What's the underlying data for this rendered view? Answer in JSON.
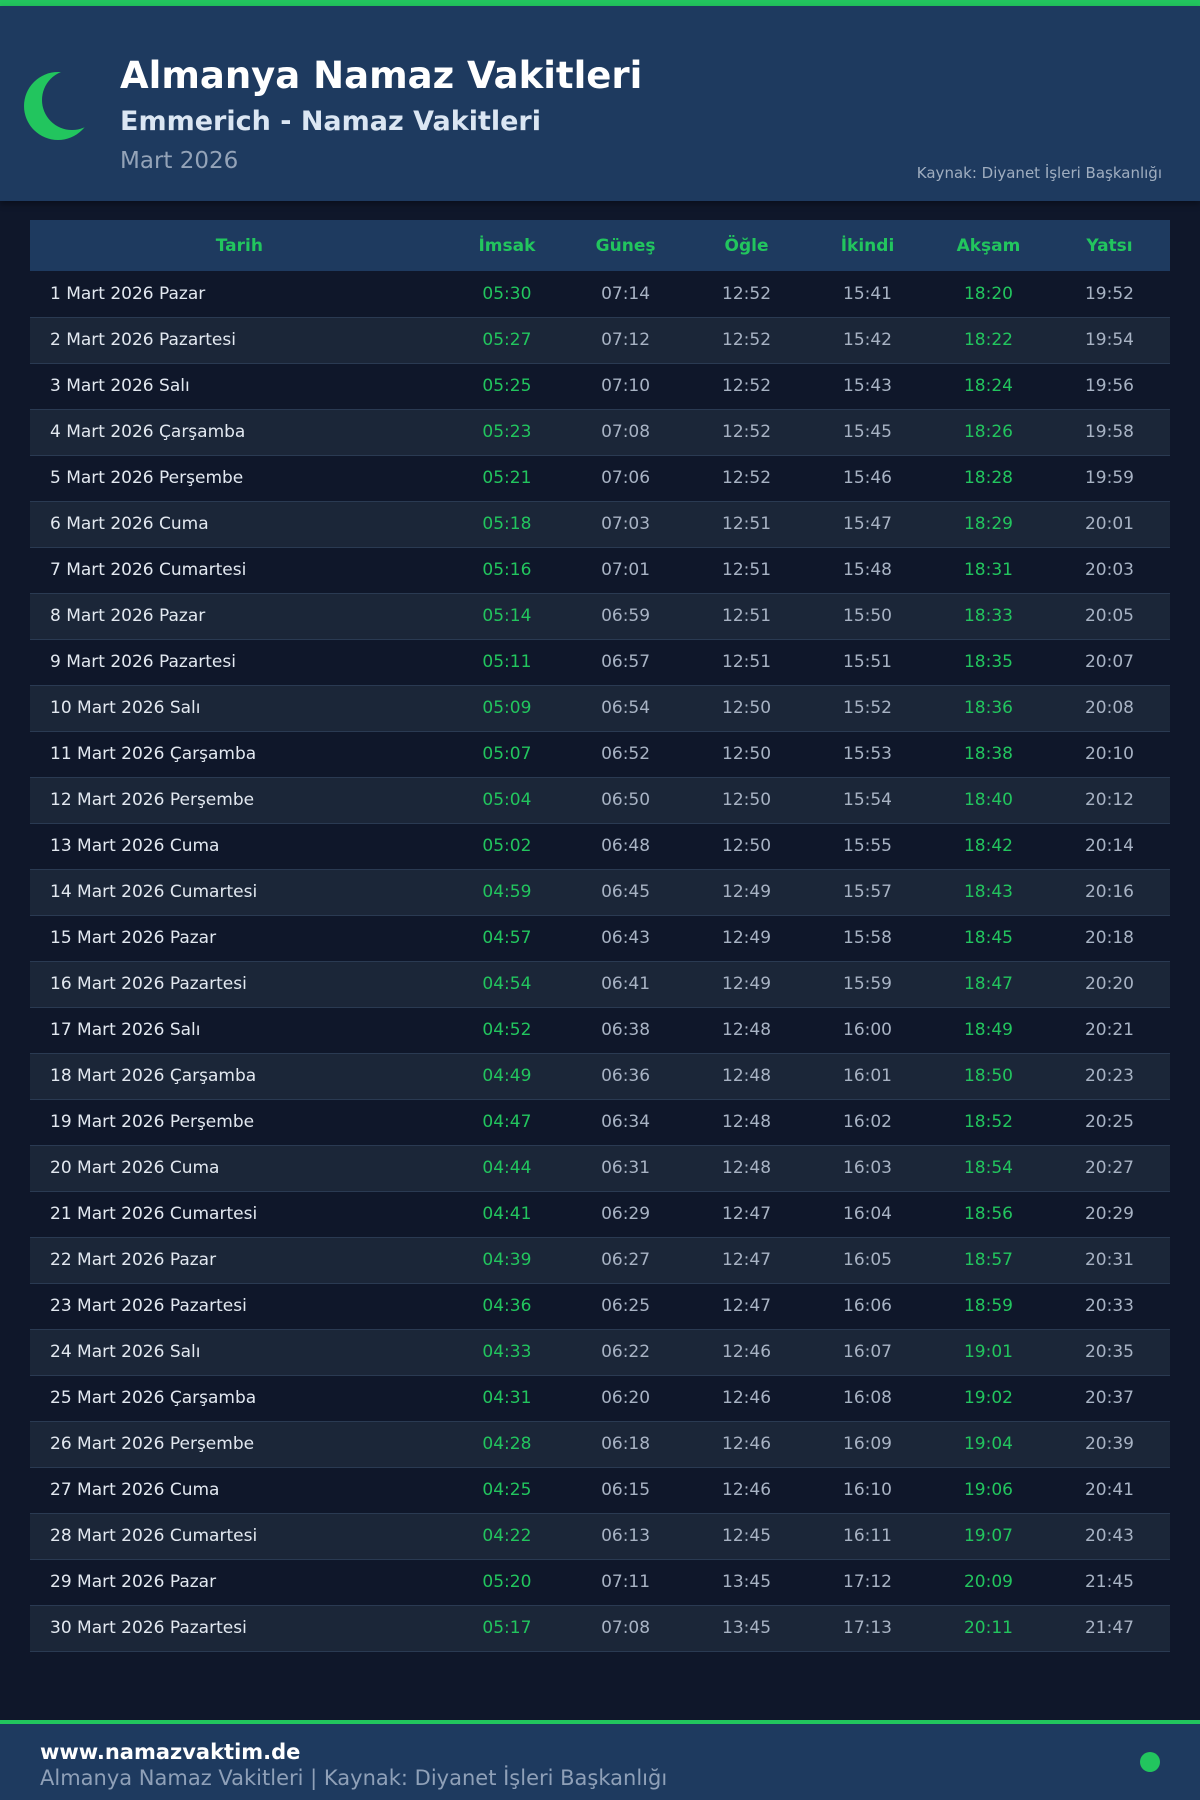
{
  "header": {
    "title": "Almanya Namaz Vakitleri",
    "subtitle": "Emmerich - Namaz Vakitleri",
    "month": "Mart 2026",
    "source": "Kaynak: Diyanet İşleri Başkanlığı",
    "icon": "crescent-moon-icon"
  },
  "colors": {
    "accent": "#22c55e",
    "header_bg": "#1e3a5f",
    "page_bg": "#0f172a"
  },
  "table": {
    "columns": [
      "Tarih",
      "İmsak",
      "Güneş",
      "Öğle",
      "İkindi",
      "Akşam",
      "Yatsı"
    ],
    "rows": [
      [
        "1 Mart 2026 Pazar",
        "05:30",
        "07:14",
        "12:52",
        "15:41",
        "18:20",
        "19:52"
      ],
      [
        "2 Mart 2026 Pazartesi",
        "05:27",
        "07:12",
        "12:52",
        "15:42",
        "18:22",
        "19:54"
      ],
      [
        "3 Mart 2026 Salı",
        "05:25",
        "07:10",
        "12:52",
        "15:43",
        "18:24",
        "19:56"
      ],
      [
        "4 Mart 2026 Çarşamba",
        "05:23",
        "07:08",
        "12:52",
        "15:45",
        "18:26",
        "19:58"
      ],
      [
        "5 Mart 2026 Perşembe",
        "05:21",
        "07:06",
        "12:52",
        "15:46",
        "18:28",
        "19:59"
      ],
      [
        "6 Mart 2026 Cuma",
        "05:18",
        "07:03",
        "12:51",
        "15:47",
        "18:29",
        "20:01"
      ],
      [
        "7 Mart 2026 Cumartesi",
        "05:16",
        "07:01",
        "12:51",
        "15:48",
        "18:31",
        "20:03"
      ],
      [
        "8 Mart 2026 Pazar",
        "05:14",
        "06:59",
        "12:51",
        "15:50",
        "18:33",
        "20:05"
      ],
      [
        "9 Mart 2026 Pazartesi",
        "05:11",
        "06:57",
        "12:51",
        "15:51",
        "18:35",
        "20:07"
      ],
      [
        "10 Mart 2026 Salı",
        "05:09",
        "06:54",
        "12:50",
        "15:52",
        "18:36",
        "20:08"
      ],
      [
        "11 Mart 2026 Çarşamba",
        "05:07",
        "06:52",
        "12:50",
        "15:53",
        "18:38",
        "20:10"
      ],
      [
        "12 Mart 2026 Perşembe",
        "05:04",
        "06:50",
        "12:50",
        "15:54",
        "18:40",
        "20:12"
      ],
      [
        "13 Mart 2026 Cuma",
        "05:02",
        "06:48",
        "12:50",
        "15:55",
        "18:42",
        "20:14"
      ],
      [
        "14 Mart 2026 Cumartesi",
        "04:59",
        "06:45",
        "12:49",
        "15:57",
        "18:43",
        "20:16"
      ],
      [
        "15 Mart 2026 Pazar",
        "04:57",
        "06:43",
        "12:49",
        "15:58",
        "18:45",
        "20:18"
      ],
      [
        "16 Mart 2026 Pazartesi",
        "04:54",
        "06:41",
        "12:49",
        "15:59",
        "18:47",
        "20:20"
      ],
      [
        "17 Mart 2026 Salı",
        "04:52",
        "06:38",
        "12:48",
        "16:00",
        "18:49",
        "20:21"
      ],
      [
        "18 Mart 2026 Çarşamba",
        "04:49",
        "06:36",
        "12:48",
        "16:01",
        "18:50",
        "20:23"
      ],
      [
        "19 Mart 2026 Perşembe",
        "04:47",
        "06:34",
        "12:48",
        "16:02",
        "18:52",
        "20:25"
      ],
      [
        "20 Mart 2026 Cuma",
        "04:44",
        "06:31",
        "12:48",
        "16:03",
        "18:54",
        "20:27"
      ],
      [
        "21 Mart 2026 Cumartesi",
        "04:41",
        "06:29",
        "12:47",
        "16:04",
        "18:56",
        "20:29"
      ],
      [
        "22 Mart 2026 Pazar",
        "04:39",
        "06:27",
        "12:47",
        "16:05",
        "18:57",
        "20:31"
      ],
      [
        "23 Mart 2026 Pazartesi",
        "04:36",
        "06:25",
        "12:47",
        "16:06",
        "18:59",
        "20:33"
      ],
      [
        "24 Mart 2026 Salı",
        "04:33",
        "06:22",
        "12:46",
        "16:07",
        "19:01",
        "20:35"
      ],
      [
        "25 Mart 2026 Çarşamba",
        "04:31",
        "06:20",
        "12:46",
        "16:08",
        "19:02",
        "20:37"
      ],
      [
        "26 Mart 2026 Perşembe",
        "04:28",
        "06:18",
        "12:46",
        "16:09",
        "19:04",
        "20:39"
      ],
      [
        "27 Mart 2026 Cuma",
        "04:25",
        "06:15",
        "12:46",
        "16:10",
        "19:06",
        "20:41"
      ],
      [
        "28 Mart 2026 Cumartesi",
        "04:22",
        "06:13",
        "12:45",
        "16:11",
        "19:07",
        "20:43"
      ],
      [
        "29 Mart 2026 Pazar",
        "05:20",
        "07:11",
        "13:45",
        "17:12",
        "20:09",
        "21:45"
      ],
      [
        "30 Mart 2026 Pazartesi",
        "05:17",
        "07:08",
        "13:45",
        "17:13",
        "20:11",
        "21:47"
      ]
    ]
  },
  "footer": {
    "site": "www.namazvaktim.de",
    "text": "Almanya Namaz Vakitleri | Kaynak: Diyanet İşleri Başkanlığı"
  }
}
